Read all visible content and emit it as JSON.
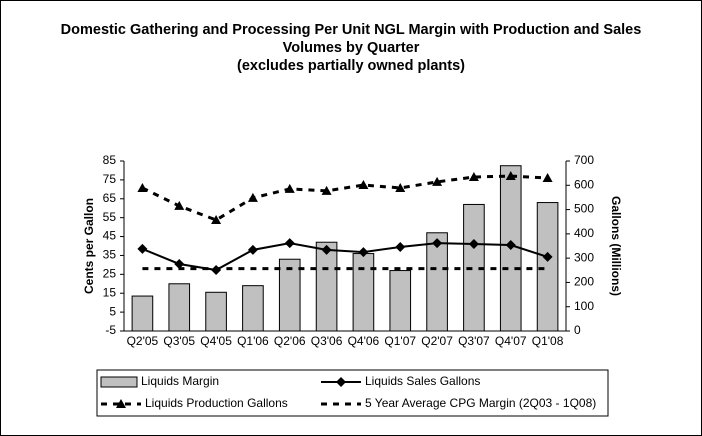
{
  "chart_data": {
    "type": "combo",
    "title": "Domestic Gathering and Processing Per Unit NGL Margin with Production and Sales Volumes by Quarter",
    "subtitle": "(excludes partially owned plants)",
    "y_label": "Cents per Gallon",
    "y2_label": "Gallons (Millions)",
    "categories": [
      "Q2'05",
      "Q3'05",
      "Q4'05",
      "Q1'06",
      "Q2'06",
      "Q3'06",
      "Q4'06",
      "Q1'07",
      "Q2'07",
      "Q3'07",
      "Q4'07",
      "Q1'08"
    ],
    "series": [
      {
        "name": "Liquids Margin",
        "type": "bar",
        "color": "#c0c0c0",
        "values": [
          13.5,
          20,
          15.5,
          19,
          33,
          42,
          36,
          27,
          47,
          62,
          82.5,
          63
        ]
      },
      {
        "name": "Liquids Sales Gallons",
        "type": "line",
        "marker": "diamond",
        "dashed": false,
        "axis": "y2",
        "color": "#000000",
        "values": [
          338,
          276,
          251,
          334,
          362,
          334,
          325,
          346,
          362,
          358,
          354,
          305
        ]
      },
      {
        "name": "Liquids Production Gallons",
        "type": "line",
        "marker": "triangle",
        "dashed": true,
        "axis": "y2",
        "color": "#000000",
        "values": [
          589,
          515,
          457,
          548,
          585,
          577,
          601,
          589,
          614,
          634,
          638,
          630
        ]
      },
      {
        "name": "5 Year Average CPG Margin (2Q03 - 1Q08)",
        "type": "line",
        "marker": "none",
        "dashed": true,
        "color": "#000000",
        "values": [
          28,
          28,
          28,
          28,
          28,
          28,
          28,
          28,
          28,
          28,
          28,
          28
        ]
      }
    ],
    "ylim": [
      -5,
      85
    ],
    "yticks": [
      -5,
      5,
      15,
      25,
      35,
      45,
      55,
      65,
      75,
      85
    ],
    "y2lim": [
      0,
      700
    ],
    "y2ticks": [
      0,
      100,
      200,
      300,
      400,
      500,
      600,
      700
    ],
    "grid": false,
    "legend": "bottom"
  }
}
